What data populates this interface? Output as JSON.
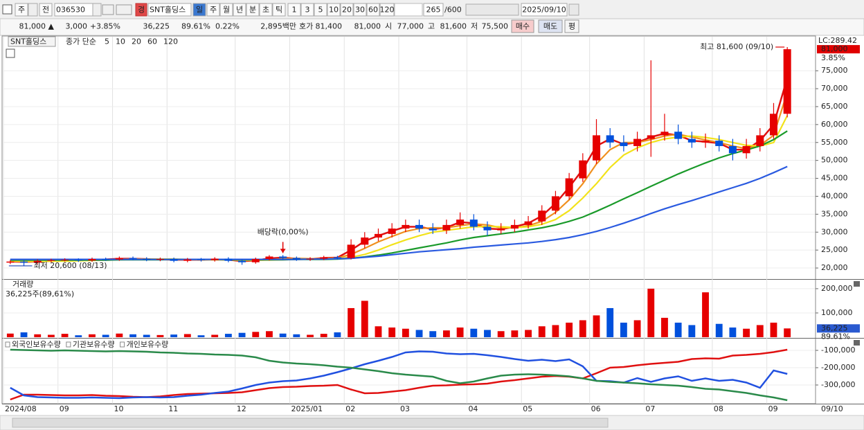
{
  "toolbar": {
    "market": "주",
    "prev": "전",
    "code": "036530",
    "badge": "경",
    "name": "SNT홀딩스",
    "periods": [
      "일",
      "주",
      "월",
      "년",
      "분",
      "초",
      "틱"
    ],
    "intervals": [
      "1",
      "3",
      "5",
      "10",
      "20",
      "30",
      "60",
      "120"
    ],
    "count": "265",
    "max": "/600",
    "date": "2025/09/10"
  },
  "quote": {
    "price": "81,000 ▲",
    "change": "3,000",
    "change_pct": "+3.85%",
    "volume": "36,225",
    "volume_ratio": "89.61%",
    "turnover": "0.22%",
    "amount": "2,895백만",
    "bid_ask_label": "호가",
    "ask": "81,400",
    "bid": "81,000",
    "open_label": "시",
    "open": "77,000",
    "high_label": "고",
    "high": "81,600",
    "low_label": "저",
    "low": "75,500",
    "buy": "매수",
    "sell": "매도",
    "eval": "평"
  },
  "chart_data": [
    {
      "type": "candlestick",
      "name": "SNT홀딩스",
      "ma_label": "종가 단순",
      "up_color": "#e60000",
      "down_color": "#0050dc",
      "open": [
        21500,
        21800,
        21500,
        22000,
        22200,
        22300,
        22100,
        22500,
        22400,
        22800,
        22600,
        22300,
        22500,
        22000,
        22400,
        22200,
        22600,
        22000,
        21600,
        22500,
        23200,
        22800,
        22400,
        22600,
        23000,
        22800,
        26500,
        28500,
        29500,
        31000,
        32000,
        31000,
        30500,
        32000,
        33500,
        31500,
        30500,
        31000,
        32000,
        33000,
        36000,
        40000,
        45000,
        50000,
        57000,
        55000,
        54000,
        56000,
        57000,
        58000,
        56000,
        55000,
        55500,
        54000,
        52000,
        54000,
        57000,
        63000
      ],
      "high": [
        22200,
        22200,
        22400,
        22600,
        22700,
        22700,
        22900,
        22900,
        23200,
        23200,
        23000,
        22900,
        22900,
        22800,
        22800,
        23000,
        23000,
        22400,
        22900,
        23600,
        23600,
        23200,
        23000,
        23400,
        23400,
        28000,
        30000,
        31000,
        32500,
        33500,
        33500,
        32500,
        33500,
        35500,
        35000,
        33000,
        32500,
        33500,
        34500,
        37500,
        41500,
        46500,
        52000,
        61500,
        59000,
        57000,
        58000,
        77900,
        63000,
        60000,
        58000,
        57500,
        57000,
        56000,
        56000,
        59000,
        66000,
        81600
      ],
      "low": [
        21100,
        20600,
        21100,
        21600,
        21800,
        21700,
        21700,
        22000,
        22000,
        22200,
        21900,
        21900,
        21600,
        21600,
        21800,
        21800,
        21600,
        20900,
        21200,
        22100,
        22400,
        22000,
        22000,
        22200,
        22400,
        22400,
        25500,
        27500,
        28500,
        30000,
        30000,
        29500,
        29500,
        31000,
        30500,
        29000,
        29500,
        30000,
        31000,
        32000,
        35000,
        39000,
        44000,
        49000,
        53500,
        52500,
        52500,
        51000,
        55500,
        54500,
        53500,
        53500,
        52500,
        50000,
        50500,
        52500,
        56000,
        62000
      ],
      "close": [
        21800,
        21500,
        22000,
        22200,
        22300,
        22100,
        22500,
        22400,
        22800,
        22600,
        22300,
        22500,
        22000,
        22400,
        22200,
        22600,
        22000,
        21600,
        22500,
        23200,
        22800,
        22400,
        22600,
        23000,
        22800,
        26500,
        28500,
        29500,
        31000,
        32000,
        31000,
        30500,
        32000,
        33500,
        31500,
        30500,
        31000,
        32000,
        33000,
        36000,
        40000,
        45000,
        50000,
        57000,
        55000,
        54000,
        56000,
        57000,
        58000,
        56000,
        55000,
        55500,
        54000,
        52000,
        54000,
        57000,
        63000,
        81000
      ],
      "series": [
        {
          "name": "5",
          "color": "#e01010",
          "values": [
            21800,
            21700,
            21800,
            22000,
            22200,
            22200,
            22300,
            22400,
            22600,
            22600,
            22500,
            22400,
            22300,
            22300,
            22300,
            22400,
            22300,
            21900,
            22100,
            22700,
            22900,
            22600,
            22500,
            22800,
            22900,
            25000,
            27500,
            29000,
            30300,
            31500,
            31500,
            30800,
            31300,
            32800,
            32500,
            31000,
            30800,
            31500,
            32500,
            34500,
            38000,
            42500,
            47500,
            54000,
            56000,
            54500,
            55000,
            56500,
            57500,
            57000,
            55500,
            55200,
            54800,
            53000,
            53000,
            55500,
            60000,
            73000
          ]
        },
        {
          "name": "10",
          "color": "#f0901e",
          "values": [
            21900,
            21800,
            21800,
            21900,
            22000,
            22100,
            22200,
            22300,
            22400,
            22500,
            22500,
            22500,
            22400,
            22400,
            22300,
            22300,
            22300,
            22100,
            22100,
            22300,
            22600,
            22700,
            22600,
            22600,
            22800,
            23800,
            25500,
            27300,
            28800,
            30200,
            31000,
            31200,
            31200,
            31800,
            32300,
            32000,
            31200,
            31200,
            31800,
            33000,
            35500,
            39000,
            43500,
            49000,
            53000,
            55000,
            55000,
            55800,
            56800,
            57300,
            56500,
            55700,
            55000,
            54000,
            53300,
            54200,
            57000,
            69000
          ]
        },
        {
          "name": "20",
          "color": "#f2e21a",
          "values": [
            22000,
            21900,
            21900,
            21900,
            21900,
            22000,
            22100,
            22200,
            22300,
            22400,
            22400,
            22500,
            22500,
            22400,
            22400,
            22300,
            22300,
            22200,
            22200,
            22200,
            22300,
            22400,
            22500,
            22500,
            22600,
            23000,
            23800,
            25000,
            26500,
            27800,
            29000,
            30000,
            30500,
            31000,
            31500,
            31600,
            31500,
            31300,
            31500,
            32200,
            33500,
            36000,
            39500,
            43500,
            48000,
            51500,
            53500,
            55000,
            56000,
            56500,
            56800,
            56400,
            55800,
            55000,
            54200,
            54000,
            55000,
            62500
          ]
        },
        {
          "name": "60",
          "color": "#1a9a2a",
          "values": [
            22200,
            22200,
            22200,
            22200,
            22200,
            22200,
            22200,
            22200,
            22300,
            22300,
            22300,
            22300,
            22400,
            22400,
            22400,
            22400,
            22300,
            22300,
            22300,
            22300,
            22300,
            22400,
            22400,
            22400,
            22500,
            22700,
            23100,
            23600,
            24200,
            24900,
            25600,
            26300,
            27000,
            27800,
            28500,
            29000,
            29500,
            30000,
            30600,
            31200,
            32000,
            33000,
            34200,
            35800,
            37500,
            39300,
            41000,
            42800,
            44500,
            46200,
            47800,
            49300,
            50700,
            51900,
            52900,
            54000,
            55800,
            58200
          ]
        },
        {
          "name": "120",
          "color": "#2a5ae0",
          "values": [
            22400,
            22400,
            22400,
            22400,
            22400,
            22400,
            22400,
            22400,
            22400,
            22400,
            22400,
            22400,
            22400,
            22400,
            22400,
            22400,
            22400,
            22400,
            22400,
            22400,
            22400,
            22400,
            22500,
            22500,
            22600,
            22700,
            23000,
            23300,
            23700,
            24100,
            24500,
            24800,
            25100,
            25400,
            25800,
            26100,
            26400,
            26700,
            27000,
            27400,
            27900,
            28500,
            29300,
            30200,
            31300,
            32500,
            33800,
            35200,
            36500,
            37700,
            38800,
            40000,
            41200,
            42400,
            43600,
            45000,
            46600,
            48300
          ]
        }
      ],
      "ylim": [
        17500,
        84300
      ],
      "yticks": [
        {
          "value": 20000,
          "label": "20,000"
        },
        {
          "value": 25000,
          "label": "25,000"
        },
        {
          "value": 30000,
          "label": "30,000"
        },
        {
          "value": 35000,
          "label": "35,000"
        },
        {
          "value": 40000,
          "label": "40,000"
        },
        {
          "value": 45000,
          "label": "45,000"
        },
        {
          "value": 50000,
          "label": "50,000"
        },
        {
          "value": 55000,
          "label": "55,000"
        },
        {
          "value": 60000,
          "label": "60,000"
        },
        {
          "value": 65000,
          "label": "65,000"
        },
        {
          "value": 70000,
          "label": "70,000"
        },
        {
          "value": 75000,
          "label": "75,000"
        }
      ],
      "grid": true,
      "annotations": [
        "최고 81,600 (09/10)",
        "최저 20,600 (08/13)",
        "배당락(0,00%)"
      ],
      "lc_label": "LC:289.42",
      "last_price_label": "81,000",
      "change_label": "3.85%"
    },
    {
      "type": "bar",
      "name": "거래량",
      "note": "36,225주(89,61%)",
      "values": [
        15000,
        20000,
        12000,
        10000,
        14000,
        8000,
        12000,
        10000,
        15000,
        12000,
        10000,
        9000,
        11000,
        13000,
        8000,
        10000,
        14000,
        18000,
        22000,
        25000,
        15000,
        12000,
        10000,
        14000,
        20000,
        120000,
        150000,
        45000,
        40000,
        35000,
        30000,
        25000,
        28000,
        40000,
        35000,
        30000,
        25000,
        28000,
        30000,
        45000,
        50000,
        60000,
        70000,
        90000,
        120000,
        60000,
        70000,
        200000,
        80000,
        60000,
        50000,
        185000,
        55000,
        40000,
        35000,
        50000,
        60000,
        36225
      ],
      "ylim": [
        0,
        234000
      ],
      "yticks": [
        {
          "value": 100000,
          "label": "100,000"
        },
        {
          "value": 200000,
          "label": "200,000"
        }
      ],
      "grid": true,
      "last_label": "36,225",
      "ratio_label": "89.61%"
    },
    {
      "type": "line",
      "categories": [
        "2024/08",
        null,
        null,
        null,
        "09",
        null,
        null,
        null,
        "10",
        null,
        null,
        null,
        "11",
        null,
        null,
        null,
        null,
        "12",
        null,
        null,
        null,
        "2025/01",
        null,
        null,
        null,
        "02",
        null,
        null,
        null,
        "03",
        null,
        null,
        null,
        null,
        "04",
        null,
        null,
        null,
        "05",
        null,
        null,
        null,
        null,
        "06",
        null,
        null,
        null,
        "07",
        null,
        null,
        null,
        null,
        "08",
        null,
        null,
        null,
        "09",
        null
      ],
      "last_date": "09/10",
      "series": [
        {
          "name": "외국인보유수량",
          "color": "#e01010",
          "values": [
            -384000,
            -356000,
            -356000,
            -358000,
            -360000,
            -360000,
            -358000,
            -362000,
            -364000,
            -368000,
            -370000,
            -366000,
            -358000,
            -352000,
            -350000,
            -348000,
            -346000,
            -342000,
            -330000,
            -318000,
            -312000,
            -310000,
            -306000,
            -304000,
            -300000,
            -326000,
            -348000,
            -346000,
            -338000,
            -330000,
            -316000,
            -304000,
            -302000,
            -298000,
            -296000,
            -292000,
            -280000,
            -272000,
            -262000,
            -252000,
            -248000,
            -252000,
            -262000,
            -232000,
            -200000,
            -196000,
            -186000,
            -178000,
            -172000,
            -166000,
            -150000,
            -146000,
            -148000,
            -130000,
            -126000,
            -120000,
            -110000,
            -96000
          ]
        },
        {
          "name": "기관보유수량",
          "color": "#2050e0",
          "values": [
            -316000,
            -360000,
            -370000,
            -372000,
            -374000,
            -374000,
            -372000,
            -374000,
            -376000,
            -372000,
            -370000,
            -372000,
            -370000,
            -362000,
            -356000,
            -346000,
            -338000,
            -320000,
            -300000,
            -286000,
            -278000,
            -274000,
            -262000,
            -246000,
            -226000,
            -204000,
            -180000,
            -160000,
            -138000,
            -112000,
            -106000,
            -108000,
            -118000,
            -122000,
            -120000,
            -128000,
            -138000,
            -150000,
            -160000,
            -154000,
            -162000,
            -152000,
            -192000,
            -276000,
            -278000,
            -286000,
            -260000,
            -282000,
            -262000,
            -250000,
            -276000,
            -262000,
            -276000,
            -270000,
            -286000,
            -316000,
            -216000,
            -236000
          ]
        },
        {
          "name": "개인보유수량",
          "color": "#2a8a4a",
          "values": [
            -96000,
            -98000,
            -100000,
            -102000,
            -100000,
            -102000,
            -104000,
            -106000,
            -104000,
            -106000,
            -108000,
            -112000,
            -114000,
            -118000,
            -120000,
            -124000,
            -126000,
            -130000,
            -140000,
            -160000,
            -170000,
            -176000,
            -180000,
            -186000,
            -194000,
            -200000,
            -210000,
            -220000,
            -232000,
            -240000,
            -246000,
            -252000,
            -276000,
            -290000,
            -280000,
            -262000,
            -246000,
            -240000,
            -238000,
            -240000,
            -244000,
            -250000,
            -262000,
            -276000,
            -282000,
            -286000,
            -290000,
            -296000,
            -300000,
            -304000,
            -312000,
            -322000,
            -326000,
            -336000,
            -346000,
            -360000,
            -372000,
            -388000
          ]
        }
      ],
      "ylim": [
        -404000,
        -36000
      ],
      "yticks": [
        {
          "value": -100000,
          "label": "-100,000"
        },
        {
          "value": -200000,
          "label": "-200,000"
        },
        {
          "value": -300000,
          "label": "-300,000"
        }
      ],
      "grid": true
    }
  ]
}
